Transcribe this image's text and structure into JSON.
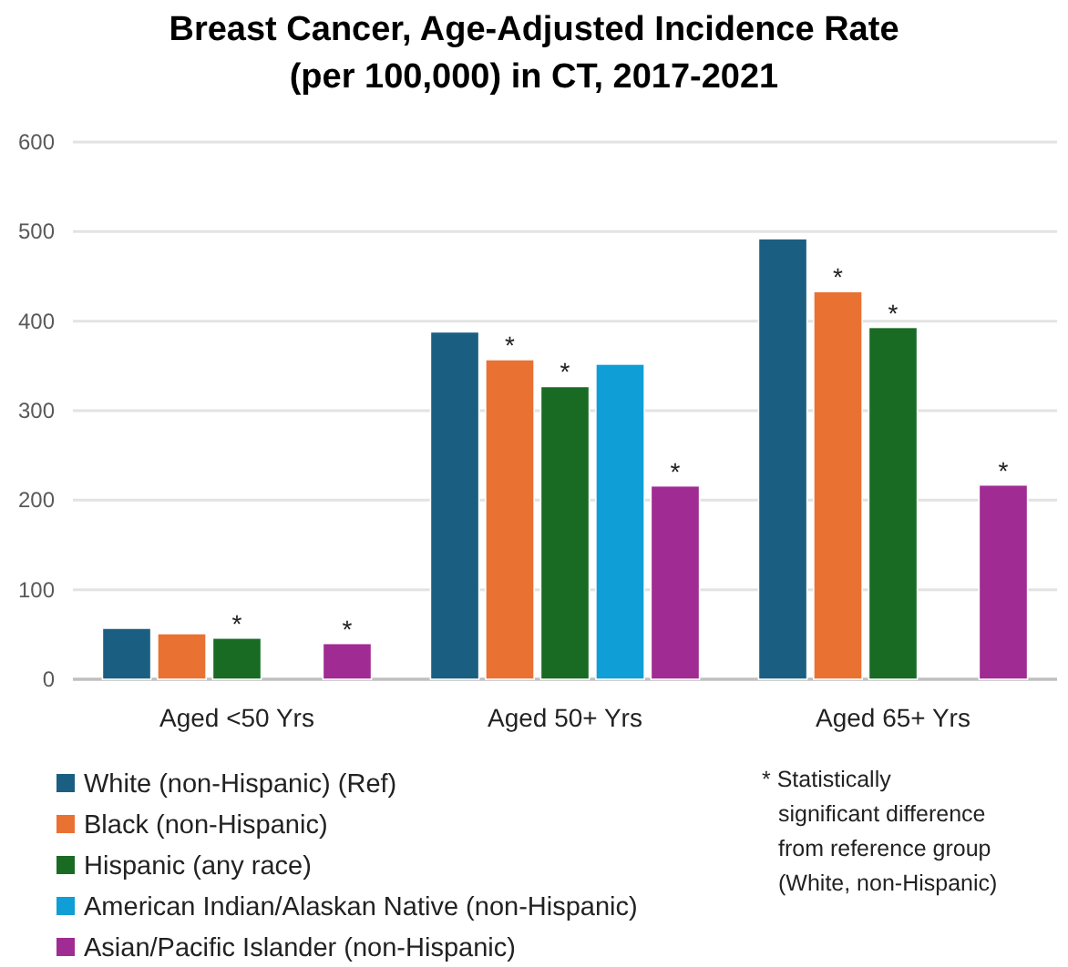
{
  "chart_data": {
    "type": "bar",
    "title": "Breast Cancer, Age-Adjusted Incidence Rate\n(per 100,000) in CT, 2017-2021",
    "categories": [
      "Aged <50 Yrs",
      "Aged 50+ Yrs",
      "Aged 65+ Yrs"
    ],
    "series": [
      {
        "name": "White (non-Hispanic) (Ref)",
        "color": "#1a5f82",
        "values": [
          57,
          388,
          492
        ],
        "value_labels": [
          null,
          null,
          null
        ]
      },
      {
        "name": "Black (non-Hispanic)",
        "color": "#e97132",
        "values": [
          51,
          357,
          433
        ],
        "value_labels": [
          null,
          "*",
          "*"
        ]
      },
      {
        "name": "Hispanic (any race)",
        "color": "#196b24",
        "values": [
          46,
          327,
          393
        ],
        "value_labels": [
          "*",
          "*",
          "*"
        ]
      },
      {
        "name": "American Indian/Alaskan Native (non-Hispanic)",
        "color": "#0f9ed5",
        "values": [
          null,
          352,
          null
        ],
        "value_labels": [
          null,
          null,
          null
        ]
      },
      {
        "name": "Asian/Pacific Islander (non-Hispanic)",
        "color": "#a02b93",
        "values": [
          40,
          216,
          217
        ],
        "value_labels": [
          "*",
          "*",
          "*"
        ]
      }
    ],
    "ylim": [
      0,
      600
    ],
    "yticks": [
      0,
      100,
      200,
      300,
      400,
      500,
      600
    ],
    "grid": "y",
    "legend": "bottom",
    "annotations": [
      "* Statistically significant difference from reference group (White, non-Hispanic)"
    ]
  }
}
